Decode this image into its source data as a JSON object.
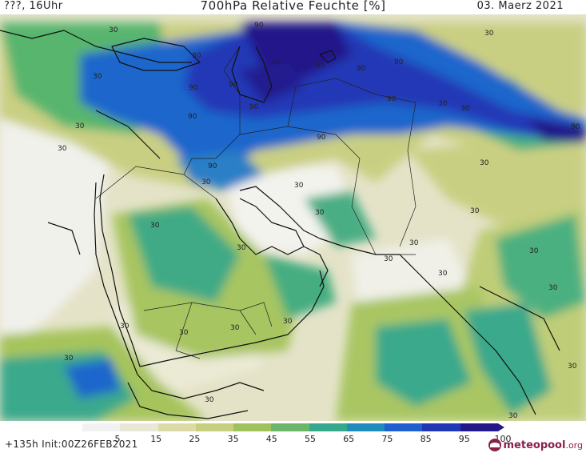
{
  "header": {
    "left_text": "???, 16Uhr",
    "title": "700hPa Relative Feuchte [%]",
    "date": "03. Maerz 2021"
  },
  "footer": {
    "run_info": "+135h Init:00Z26FEB2021",
    "logo_name": "meteopool",
    "logo_tld": ".org"
  },
  "colorbar": {
    "ticks": [
      "5",
      "15",
      "25",
      "35",
      "45",
      "55",
      "65",
      "75",
      "85",
      "95",
      "100"
    ],
    "colors": [
      "#f2f2f2",
      "#e9e8d6",
      "#dcdba7",
      "#c5cf7d",
      "#a0c25d",
      "#6cb66a",
      "#36a98c",
      "#1e8cbc",
      "#1f5fd0",
      "#2138b6",
      "#24178a"
    ]
  },
  "contour_labels": {
    "h90": "90",
    "h30": "30"
  },
  "colors": {
    "land_dry": "#e8e7cf",
    "humid_green": "#a6c45c",
    "humid_teal": "#3aa98c",
    "humid_blue": "#1f63cf",
    "humid_dark": "#22208d",
    "coastline": "#111111"
  }
}
